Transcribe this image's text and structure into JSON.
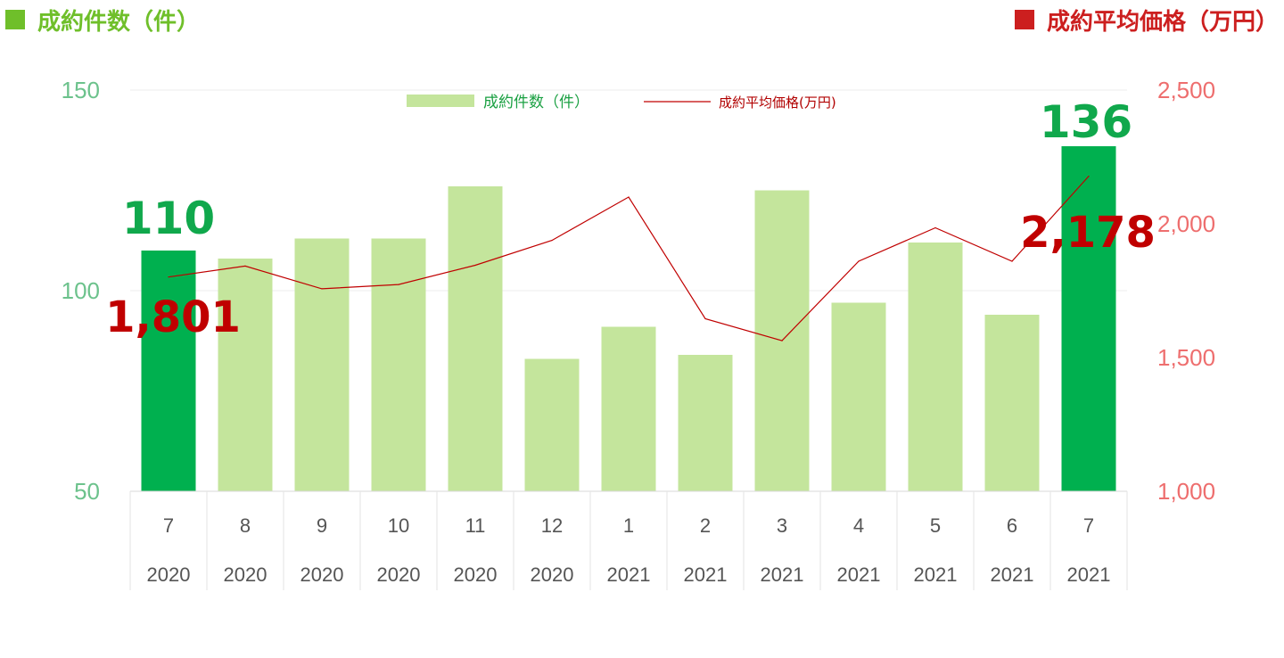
{
  "header": {
    "left_title": "成約件数（件）",
    "right_title": "成約平均価格（万円）"
  },
  "colors": {
    "bar": "#c4e59c",
    "bar_highlight": "#00b04f",
    "line": "#c00000",
    "left_axis": "#6cc28c",
    "right_axis": "#ee6e6e"
  },
  "chart_data": {
    "type": "bar",
    "categories": [
      {
        "month": "7",
        "year": "2020"
      },
      {
        "month": "8",
        "year": "2020"
      },
      {
        "month": "9",
        "year": "2020"
      },
      {
        "month": "10",
        "year": "2020"
      },
      {
        "month": "11",
        "year": "2020"
      },
      {
        "month": "12",
        "year": "2020"
      },
      {
        "month": "1",
        "year": "2021"
      },
      {
        "month": "2",
        "year": "2021"
      },
      {
        "month": "3",
        "year": "2021"
      },
      {
        "month": "4",
        "year": "2021"
      },
      {
        "month": "5",
        "year": "2021"
      },
      {
        "month": "6",
        "year": "2021"
      },
      {
        "month": "7",
        "year": "2021"
      }
    ],
    "series": [
      {
        "name": "成約件数（件）",
        "type": "bar",
        "axis": "left",
        "values": [
          110,
          108,
          113,
          113,
          126,
          83,
          91,
          84,
          125,
          97,
          112,
          94,
          136
        ],
        "highlight_indices": [
          0,
          12
        ]
      },
      {
        "name": "成約平均価格(万円)",
        "type": "line",
        "axis": "right",
        "values": [
          1801,
          1842,
          1757,
          1773,
          1845,
          1938,
          2100,
          1645,
          1563,
          1860,
          1985,
          1860,
          2178
        ]
      }
    ],
    "left_axis": {
      "ylim": [
        50,
        150
      ],
      "ticks": [
        "150",
        "100",
        "50"
      ]
    },
    "right_axis": {
      "ylim": [
        1000,
        2500
      ],
      "ticks": [
        "2,500",
        "2,000",
        "1,500",
        "1,000"
      ]
    },
    "legend": {
      "position": "top-center",
      "bar_label": "成約件数（件）",
      "line_label": "成約平均価格(万円)"
    },
    "annotations": {
      "first_bar": "110",
      "last_bar": "136",
      "first_price": "1,801",
      "last_price": "2,178"
    }
  }
}
